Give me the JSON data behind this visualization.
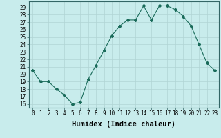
{
  "x": [
    0,
    1,
    2,
    3,
    4,
    5,
    6,
    7,
    8,
    9,
    10,
    11,
    12,
    13,
    14,
    15,
    16,
    17,
    18,
    19,
    20,
    21,
    22,
    23
  ],
  "y": [
    20.5,
    19.0,
    19.0,
    18.0,
    17.2,
    16.0,
    16.2,
    19.3,
    21.2,
    23.2,
    25.2,
    26.5,
    27.3,
    27.3,
    29.2,
    27.3,
    29.2,
    29.2,
    28.7,
    27.8,
    26.5,
    24.0,
    21.5,
    20.5
  ],
  "line_color": "#1a6b5a",
  "marker": "D",
  "markersize": 2,
  "bg_color": "#c8ecec",
  "grid_color": "#b0d4d4",
  "xlabel": "Humidex (Indice chaleur)",
  "ylabel_ticks": [
    16,
    17,
    18,
    19,
    20,
    21,
    22,
    23,
    24,
    25,
    26,
    27,
    28,
    29
  ],
  "ylim": [
    15.5,
    29.8
  ],
  "xlim": [
    -0.5,
    23.5
  ],
  "xticks": [
    0,
    1,
    2,
    3,
    4,
    5,
    6,
    7,
    8,
    9,
    10,
    11,
    12,
    13,
    14,
    15,
    16,
    17,
    18,
    19,
    20,
    21,
    22,
    23
  ],
  "tick_fontsize": 5.5,
  "label_fontsize": 7.5
}
